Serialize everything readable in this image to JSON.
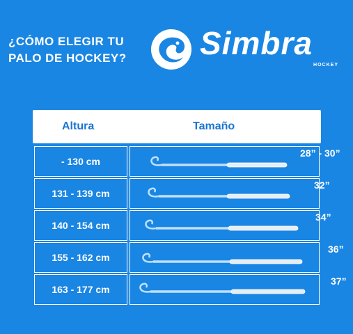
{
  "headline": {
    "line1": "¿CÓMO ELEGIR TU",
    "line2": "PALO DE HOCKEY?"
  },
  "brand": {
    "name": "Simbra",
    "sub": "HOCKEY"
  },
  "table": {
    "headers": {
      "height": "Altura",
      "size": "Tamaño"
    },
    "rows": [
      {
        "height": "- 130 cm",
        "size": "28” - 30”"
      },
      {
        "height": "131 - 139 cm",
        "size": "32”"
      },
      {
        "height": "140 - 154 cm",
        "size": "34”"
      },
      {
        "height": "155 - 162 cm",
        "size": "36”"
      },
      {
        "height": "163 - 177 cm",
        "size": "37”"
      }
    ]
  },
  "colors": {
    "background": "#1a86e3",
    "header_text": "#1a75d1",
    "white": "#ffffff"
  }
}
